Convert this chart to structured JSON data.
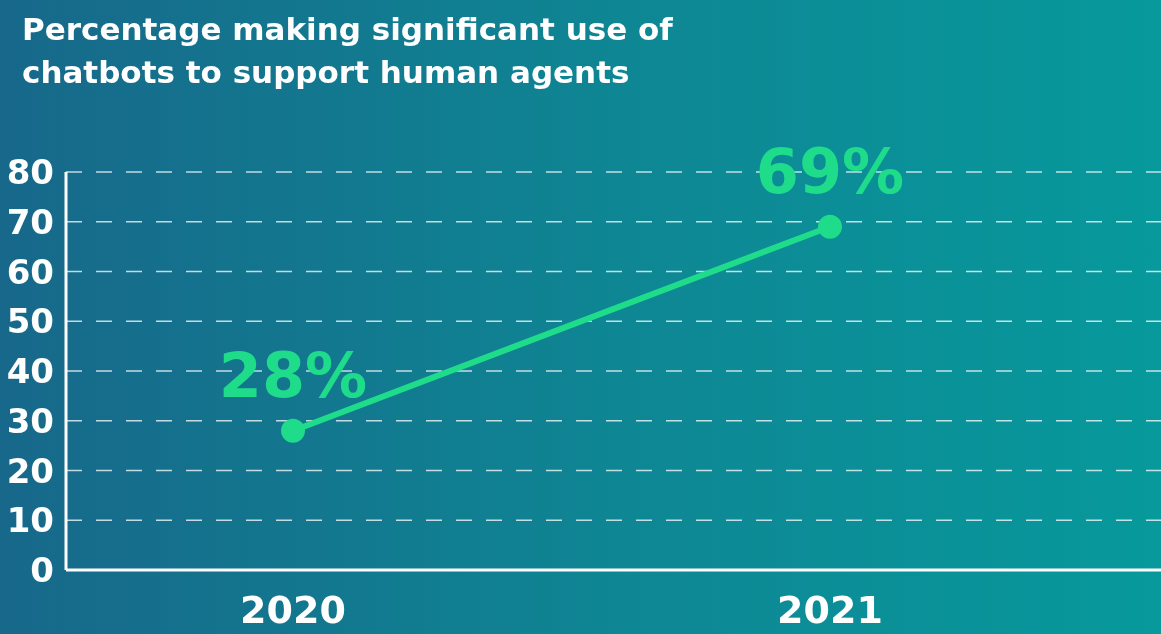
{
  "chart_data": {
    "type": "line",
    "title": "Percentage making significant use of chatbots to support human agents",
    "categories": [
      "2020",
      "2021"
    ],
    "values": [
      28,
      69
    ],
    "color": "#1edc8a",
    "value_labels": [
      "28%",
      "69%"
    ],
    "ylim": [
      0,
      80
    ],
    "yticks": [
      0,
      10,
      20,
      30,
      40,
      50,
      60,
      70,
      80
    ],
    "grid": "y",
    "marker": "circle",
    "line_style": "solid"
  }
}
